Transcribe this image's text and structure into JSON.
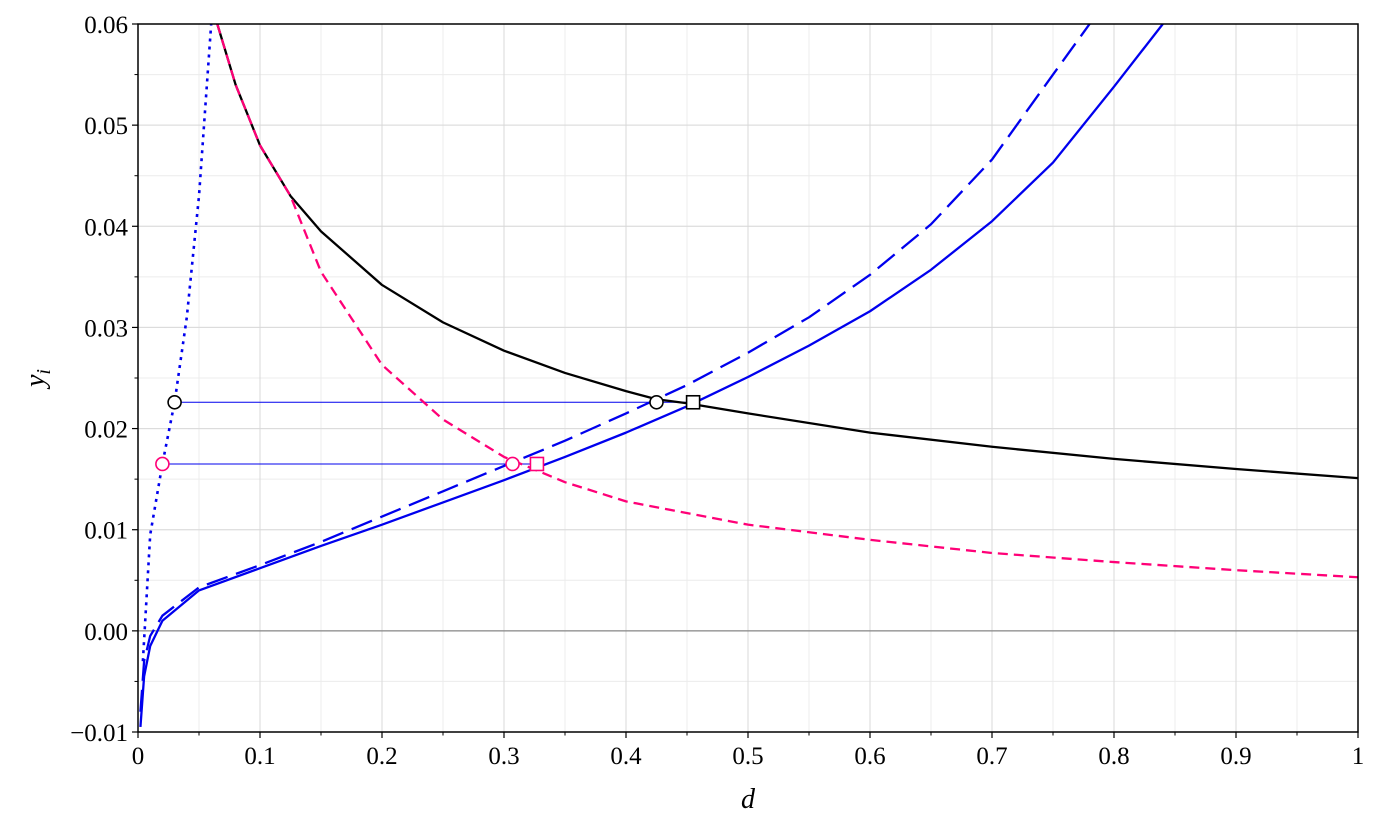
{
  "chart_data": {
    "type": "line",
    "xlabel": "d",
    "ylabel": "y",
    "ylabel_subscript": "i",
    "xlim": [
      0,
      1
    ],
    "ylim": [
      -0.01,
      0.06
    ],
    "grid": true,
    "minor_grid": true,
    "x_ticks": [
      0,
      0.1,
      0.2,
      0.3,
      0.4,
      0.5,
      0.6,
      0.7,
      0.8,
      0.9,
      1
    ],
    "x_tick_labels": [
      "0",
      "0.1",
      "0.2",
      "0.3",
      "0.4",
      "0.5",
      "0.6",
      "0.7",
      "0.8",
      "0.9",
      "1"
    ],
    "y_ticks": [
      -0.01,
      0,
      0.01,
      0.02,
      0.03,
      0.04,
      0.05,
      0.06
    ],
    "y_tick_labels": [
      "−0.01",
      "0.00",
      "0.01",
      "0.02",
      "0.03",
      "0.04",
      "0.05",
      "0.06"
    ],
    "colors": {
      "blue": "#0000ee",
      "pink": "#ff0077",
      "black": "#000000",
      "zero_line": "#888888",
      "grid": "#d9d9d9"
    },
    "series": [
      {
        "style": "dotted",
        "color": "#0000ee",
        "x": [
          0.004,
          0.01,
          0.02,
          0.03,
          0.04,
          0.05,
          0.06
        ],
        "y": [
          -0.003,
          0.0095,
          0.0165,
          0.0226,
          0.031,
          0.043,
          0.06
        ]
      },
      {
        "style": "solid",
        "color": "#000000",
        "x": [
          0.065,
          0.08,
          0.1,
          0.125,
          0.15,
          0.2,
          0.25,
          0.3,
          0.35,
          0.4,
          0.425,
          0.45,
          0.5,
          0.6,
          0.7,
          0.8,
          0.9,
          1.0
        ],
        "y": [
          0.06,
          0.054,
          0.048,
          0.043,
          0.0395,
          0.0342,
          0.0305,
          0.0277,
          0.0255,
          0.0237,
          0.0229,
          0.0225,
          0.0215,
          0.0196,
          0.0182,
          0.017,
          0.016,
          0.0151
        ]
      },
      {
        "style": "dashed",
        "color": "#ff0077",
        "x": [
          0.065,
          0.08,
          0.1,
          0.125,
          0.15,
          0.2,
          0.25,
          0.3,
          0.35,
          0.4,
          0.5,
          0.6,
          0.7,
          0.8,
          0.9,
          1.0
        ],
        "y": [
          0.06,
          0.054,
          0.048,
          0.043,
          0.0355,
          0.0263,
          0.0209,
          0.0172,
          0.0147,
          0.0128,
          0.0105,
          0.009,
          0.0077,
          0.0068,
          0.006,
          0.0053
        ]
      },
      {
        "style": "longdash",
        "color": "#0000ee",
        "x": [
          0.002,
          0.005,
          0.01,
          0.02,
          0.05,
          0.1,
          0.15,
          0.2,
          0.25,
          0.3,
          0.35,
          0.4,
          0.45,
          0.5,
          0.55,
          0.6,
          0.65,
          0.7,
          0.75,
          0.78
        ],
        "y": [
          -0.008,
          -0.003,
          -0.0005,
          0.0015,
          0.0043,
          0.0065,
          0.0088,
          0.0113,
          0.0138,
          0.0163,
          0.0188,
          0.0215,
          0.0243,
          0.0275,
          0.031,
          0.0352,
          0.0402,
          0.0466,
          0.055,
          0.06
        ]
      },
      {
        "style": "solid",
        "color": "#0000ee",
        "x": [
          0.002,
          0.005,
          0.01,
          0.02,
          0.05,
          0.1,
          0.15,
          0.2,
          0.25,
          0.3,
          0.35,
          0.4,
          0.45,
          0.5,
          0.55,
          0.6,
          0.65,
          0.7,
          0.75,
          0.8,
          0.84
        ],
        "y": [
          -0.0095,
          -0.0045,
          -0.0015,
          0.001,
          0.004,
          0.0062,
          0.0084,
          0.0105,
          0.0127,
          0.0149,
          0.0172,
          0.0196,
          0.0222,
          0.0251,
          0.0282,
          0.0316,
          0.0357,
          0.0405,
          0.0463,
          0.0538,
          0.06
        ]
      }
    ],
    "reference_lines": [
      {
        "color": "#0000ee",
        "y": 0.0226,
        "x_start": 0.03,
        "x_end": 0.455
      },
      {
        "color": "#0000ee",
        "y": 0.0165,
        "x_start": 0.02,
        "x_end": 0.327
      }
    ],
    "markers": [
      {
        "shape": "circle",
        "color": "#000000",
        "x": 0.03,
        "y": 0.0226
      },
      {
        "shape": "circle",
        "color": "#000000",
        "x": 0.425,
        "y": 0.0226
      },
      {
        "shape": "square",
        "color": "#000000",
        "x": 0.455,
        "y": 0.0226
      },
      {
        "shape": "circle",
        "color": "#ff0077",
        "x": 0.02,
        "y": 0.0165
      },
      {
        "shape": "circle",
        "color": "#ff0077",
        "x": 0.307,
        "y": 0.0165
      },
      {
        "shape": "square",
        "color": "#ff0077",
        "x": 0.327,
        "y": 0.0165
      }
    ]
  }
}
